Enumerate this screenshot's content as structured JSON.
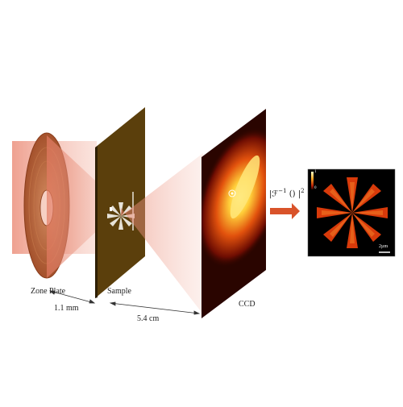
{
  "labels": {
    "zone_plate": "Zone Plate",
    "sample": "Sample",
    "ccd": "CCD",
    "dist_zp_sample": "1.1 mm",
    "dist_sample_ccd": "5.4 cm"
  },
  "formula": {
    "prefix": "|ℱ",
    "exponent": "−1",
    "body": " () |",
    "power": "2"
  },
  "inset": {
    "colorbar_top": "1",
    "colorbar_bottom": "0",
    "scale_bar": "2µm"
  },
  "colors": {
    "beam": "#e9826c",
    "sample_plate": "#5b3f0c",
    "ccd_bg": "#2a0500",
    "arrow": "#d9532a",
    "zone_plate": "#b9653a"
  }
}
